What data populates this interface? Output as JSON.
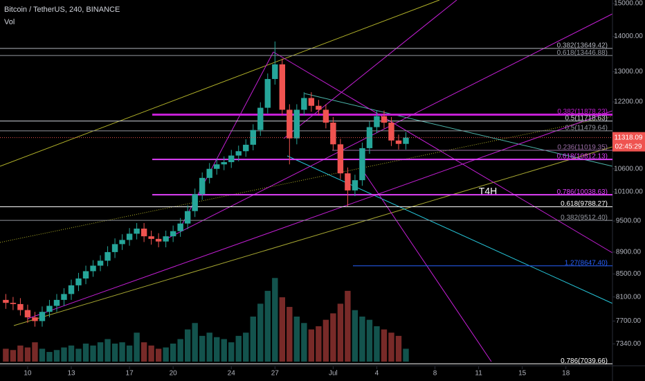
{
  "chart_data": {
    "type": "candlestick",
    "title": "Bitcoin / TetherUS, 240, BINANCE",
    "indicator_label": "Vol",
    "annotation": "T4H",
    "x": [
      -1.5,
      -1,
      -0.5,
      0,
      0.5,
      1,
      1.5,
      2,
      2.5,
      3,
      3.5,
      4,
      4.5,
      5,
      5.5,
      6,
      6.5,
      7,
      7.5,
      8,
      8.5,
      9,
      9.5,
      10,
      10.5,
      11,
      11.5,
      12,
      12.5,
      13,
      13.5,
      14,
      14.5,
      15,
      15.5,
      16,
      16.5,
      17,
      17.5,
      18,
      18.5,
      19,
      19.5,
      20,
      20.5,
      21,
      21.5,
      22,
      22.5,
      23,
      23.5,
      24,
      24.5,
      25,
      25.5,
      26
    ],
    "open": [
      8050,
      8000,
      7980,
      7880,
      7760,
      7700,
      7850,
      7950,
      8050,
      8150,
      8300,
      8420,
      8550,
      8650,
      8740,
      8900,
      9050,
      9130,
      9250,
      9350,
      9200,
      9150,
      9100,
      9200,
      9300,
      9450,
      9700,
      10050,
      10400,
      10600,
      10700,
      10750,
      10900,
      11000,
      11150,
      11500,
      12050,
      12800,
      13200,
      12000,
      11300,
      12000,
      12300,
      12100,
      12000,
      11680,
      11160,
      10500,
      10130,
      10350,
      11070,
      11570,
      11840,
      11680,
      11250,
      11170
    ],
    "high": [
      8150,
      8100,
      8080,
      7970,
      7850,
      7940,
      8050,
      8150,
      8250,
      8400,
      8520,
      8650,
      8750,
      8840,
      9010,
      9160,
      9240,
      9360,
      9460,
      9460,
      9310,
      9260,
      9310,
      9410,
      9560,
      9820,
      10170,
      10520,
      10730,
      10830,
      10880,
      11030,
      11130,
      11280,
      11640,
      12190,
      12950,
      13850,
      13360,
      12140,
      12140,
      12450,
      12450,
      12250,
      12140,
      11820,
      11290,
      10630,
      10470,
      11200,
      11710,
      11980,
      11980,
      11820,
      11390,
      11450
    ],
    "low": [
      7900,
      7880,
      7790,
      7670,
      7610,
      7610,
      7760,
      7850,
      7950,
      8050,
      8200,
      8320,
      8450,
      8550,
      8640,
      8790,
      8940,
      9020,
      9140,
      9090,
      9040,
      8990,
      8990,
      9090,
      9190,
      9340,
      9580,
      9930,
      10280,
      10470,
      10570,
      10620,
      10770,
      10870,
      11020,
      11360,
      11910,
      12650,
      11860,
      10700,
      11160,
      11860,
      11950,
      11860,
      11540,
      11030,
      10370,
      9800,
      10010,
      10230,
      10940,
      11430,
      11540,
      11120,
      11040,
      11040
    ],
    "close": [
      8000,
      7980,
      7880,
      7760,
      7700,
      7850,
      7950,
      8050,
      8150,
      8300,
      8420,
      8550,
      8650,
      8740,
      8900,
      9050,
      9130,
      9250,
      9350,
      9200,
      9150,
      9100,
      9200,
      9300,
      9450,
      9700,
      10050,
      10400,
      10600,
      10700,
      10750,
      10900,
      11000,
      11150,
      11500,
      12050,
      12800,
      13200,
      12000,
      11300,
      12000,
      12300,
      12100,
      12000,
      11680,
      11160,
      10500,
      10130,
      10350,
      11070,
      11570,
      11840,
      11680,
      11250,
      11170,
      11318
    ],
    "volume": [
      20,
      18,
      25,
      22,
      30,
      20,
      15,
      18,
      22,
      25,
      20,
      28,
      25,
      30,
      35,
      28,
      30,
      25,
      45,
      30,
      25,
      20,
      22,
      28,
      35,
      50,
      60,
      40,
      45,
      38,
      35,
      30,
      40,
      45,
      70,
      90,
      110,
      130,
      100,
      85,
      70,
      60,
      50,
      55,
      65,
      75,
      90,
      110,
      80,
      70,
      65,
      55,
      50,
      45,
      40,
      20
    ],
    "vlim": [
      0,
      140
    ],
    "up_color": "#26a69a",
    "down_color": "#ef5350",
    "log_scale": true,
    "grid": false,
    "xlim": [
      -1.9,
      40.2
    ],
    "ylim": [
      7000,
      15110
    ],
    "xticks": [
      {
        "value": 0,
        "label": "10"
      },
      {
        "value": 3,
        "label": "13"
      },
      {
        "value": 7,
        "label": "17"
      },
      {
        "value": 10,
        "label": "20"
      },
      {
        "value": 14,
        "label": "24"
      },
      {
        "value": 17,
        "label": "27"
      },
      {
        "value": 21,
        "label": "Jul"
      },
      {
        "value": 24,
        "label": "4"
      },
      {
        "value": 28,
        "label": "8"
      },
      {
        "value": 31,
        "label": "11"
      },
      {
        "value": 34,
        "label": "15"
      },
      {
        "value": 37,
        "label": "18"
      }
    ],
    "yticks": [
      {
        "value": 15000,
        "label": "15000.00"
      },
      {
        "value": 14000,
        "label": "14000.00"
      },
      {
        "value": 13000,
        "label": "13000.00"
      },
      {
        "value": 12200,
        "label": "12200.00"
      },
      {
        "value": 10600,
        "label": "10600.00"
      },
      {
        "value": 10100,
        "label": "10100.00"
      },
      {
        "value": 9500,
        "label": "9500.00"
      },
      {
        "value": 8900,
        "label": "8900.00"
      },
      {
        "value": 8500,
        "label": "8500.00"
      },
      {
        "value": 8100,
        "label": "8100.00"
      },
      {
        "value": 7700,
        "label": "7700.00"
      },
      {
        "value": 7340,
        "label": "7340.00"
      }
    ],
    "levels": [
      {
        "value": 13649.42,
        "label": "0.382(13649.42)",
        "color": "#b2b5be"
      },
      {
        "value": 13446.88,
        "label": "0.618(13446.88)",
        "color": "#9598a1"
      },
      {
        "value": 11878.23,
        "label": "0.382(11878.23)",
        "color": "#c51fd6"
      },
      {
        "value": 11718.63,
        "label": "0.5(11718.63)",
        "color": "#d1d4dc"
      },
      {
        "value": 11479.64,
        "label": "0.5(11479.64)",
        "color": "#9598a1"
      },
      {
        "value": 11019.35,
        "label": "0.236(11019.35)",
        "color": "#9c6fa8"
      },
      {
        "value": 10812.13,
        "label": "0.618(10812.13)",
        "color": "#e040fb"
      },
      {
        "value": 10038.63,
        "label": "0.786(10038.63)",
        "color": "#e040fb"
      },
      {
        "value": 9788.27,
        "label": "0.618(9788.27)",
        "color": "#ffffff"
      },
      {
        "value": 9512.4,
        "label": "0.382(9512.40)",
        "color": "#9598a1"
      },
      {
        "value": 8647.4,
        "label": "1.27(8647.40)",
        "color": "#2962ff"
      },
      {
        "value": 7039.66,
        "label": "0.786(7039.66)",
        "color": "#ffffff"
      }
    ],
    "last_price": 11318.09,
    "countdown": "02:45:29"
  }
}
